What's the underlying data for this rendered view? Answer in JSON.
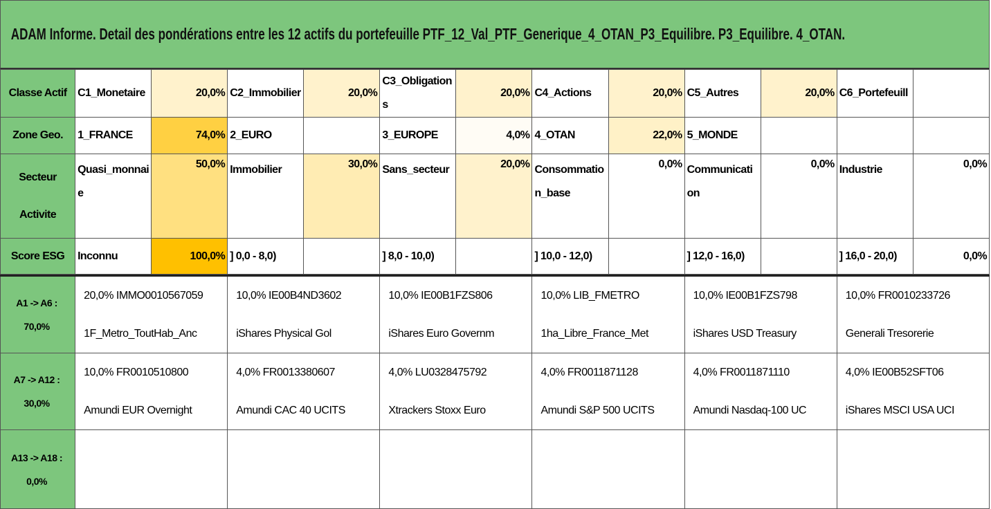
{
  "title": "ADAM Informe. Detail des pondérations entre les 12 actifs du portefeuille PTF_12_Val_PTF_Generique_4_OTAN_P3_Equilibre. P3_Equilibre. 4_OTAN.",
  "summary": {
    "rows": [
      {
        "label": "Classe Actif",
        "cells": [
          {
            "name": "C1_Monetaire",
            "weight": "20,0%"
          },
          {
            "name": "C2_Immobilier",
            "weight": "20,0%"
          },
          {
            "name": "C3_Obligations",
            "weight": "20,0%"
          },
          {
            "name": "C4_Actions",
            "weight": "20,0%"
          },
          {
            "name": "C5_Autres",
            "weight": "20,0%"
          },
          {
            "name": "C6_Portefeuill"
          }
        ]
      },
      {
        "label": "Zone Geo.",
        "cells": [
          {
            "name": "1_FRANCE",
            "weight": "74,0%"
          },
          {
            "name": "2_EURO"
          },
          {
            "name": "3_EUROPE",
            "weight": "4,0%"
          },
          {
            "name": "4_OTAN",
            "weight": "22,0%"
          },
          {
            "name": "5_MONDE"
          },
          null
        ]
      },
      {
        "label": "Secteur Activite",
        "cells": [
          {
            "name": "Quasi_monnaie",
            "weight": "50,0%"
          },
          {
            "name": "Immobilier",
            "weight": "30,0%"
          },
          {
            "name": "Sans_secteur",
            "weight": "20,0%"
          },
          {
            "name": "Consommation_base",
            "weight": "0,0%"
          },
          {
            "name": "Communication",
            "weight": "0,0%"
          },
          {
            "name": "Industrie",
            "weight": "0,0%"
          }
        ]
      },
      {
        "label": "Score ESG",
        "cells": [
          {
            "name": "Inconnu",
            "weight": "100,0%"
          },
          {
            "name": "] 0,0 - 8,0)"
          },
          {
            "name": "] 8,0 - 10,0)"
          },
          {
            "name": "] 10,0 - 12,0)"
          },
          {
            "name": "] 12,0 - 16,0)"
          },
          {
            "name": "] 16,0 - 20,0)",
            "weight": "0,0%"
          }
        ]
      }
    ]
  },
  "holdings": {
    "rows": [
      {
        "label": [
          "A1 -> A6 :",
          "70,0%"
        ],
        "cells": [
          [
            "20,0% IMMO0010567059",
            "1F_Metro_ToutHab_Anc"
          ],
          [
            "10,0% IE00B4ND3602",
            "iShares Physical Gol"
          ],
          [
            "10,0% IE00B1FZS806",
            "iShares Euro Governm"
          ],
          [
            "10,0% LIB_FMETRO",
            "1ha_Libre_France_Met"
          ],
          [
            "10,0% IE00B1FZS798",
            "iShares USD Treasury"
          ],
          [
            "10,0% FR0010233726",
            "Generali Tresorerie"
          ]
        ]
      },
      {
        "label": [
          "A7 -> A12 :",
          "30,0%"
        ],
        "cells": [
          [
            "10,0% FR0010510800",
            "Amundi EUR Overnight"
          ],
          [
            "4,0% FR0013380607",
            "Amundi CAC 40 UCITS"
          ],
          [
            "4,0% LU0328475792",
            "Xtrackers Stoxx Euro"
          ],
          [
            "4,0% FR0011871128",
            "Amundi S&P 500 UCITS"
          ],
          [
            "4,0% FR0011871110",
            "Amundi Nasdaq-100 UC"
          ],
          [
            "4,0% IE00B52SFT06",
            "iShares MSCI USA UCI"
          ]
        ]
      },
      {
        "label": [
          "A13 -> A18 :",
          "0,0%"
        ],
        "cells": [
          [],
          [],
          [],
          [],
          [],
          []
        ]
      }
    ]
  }
}
